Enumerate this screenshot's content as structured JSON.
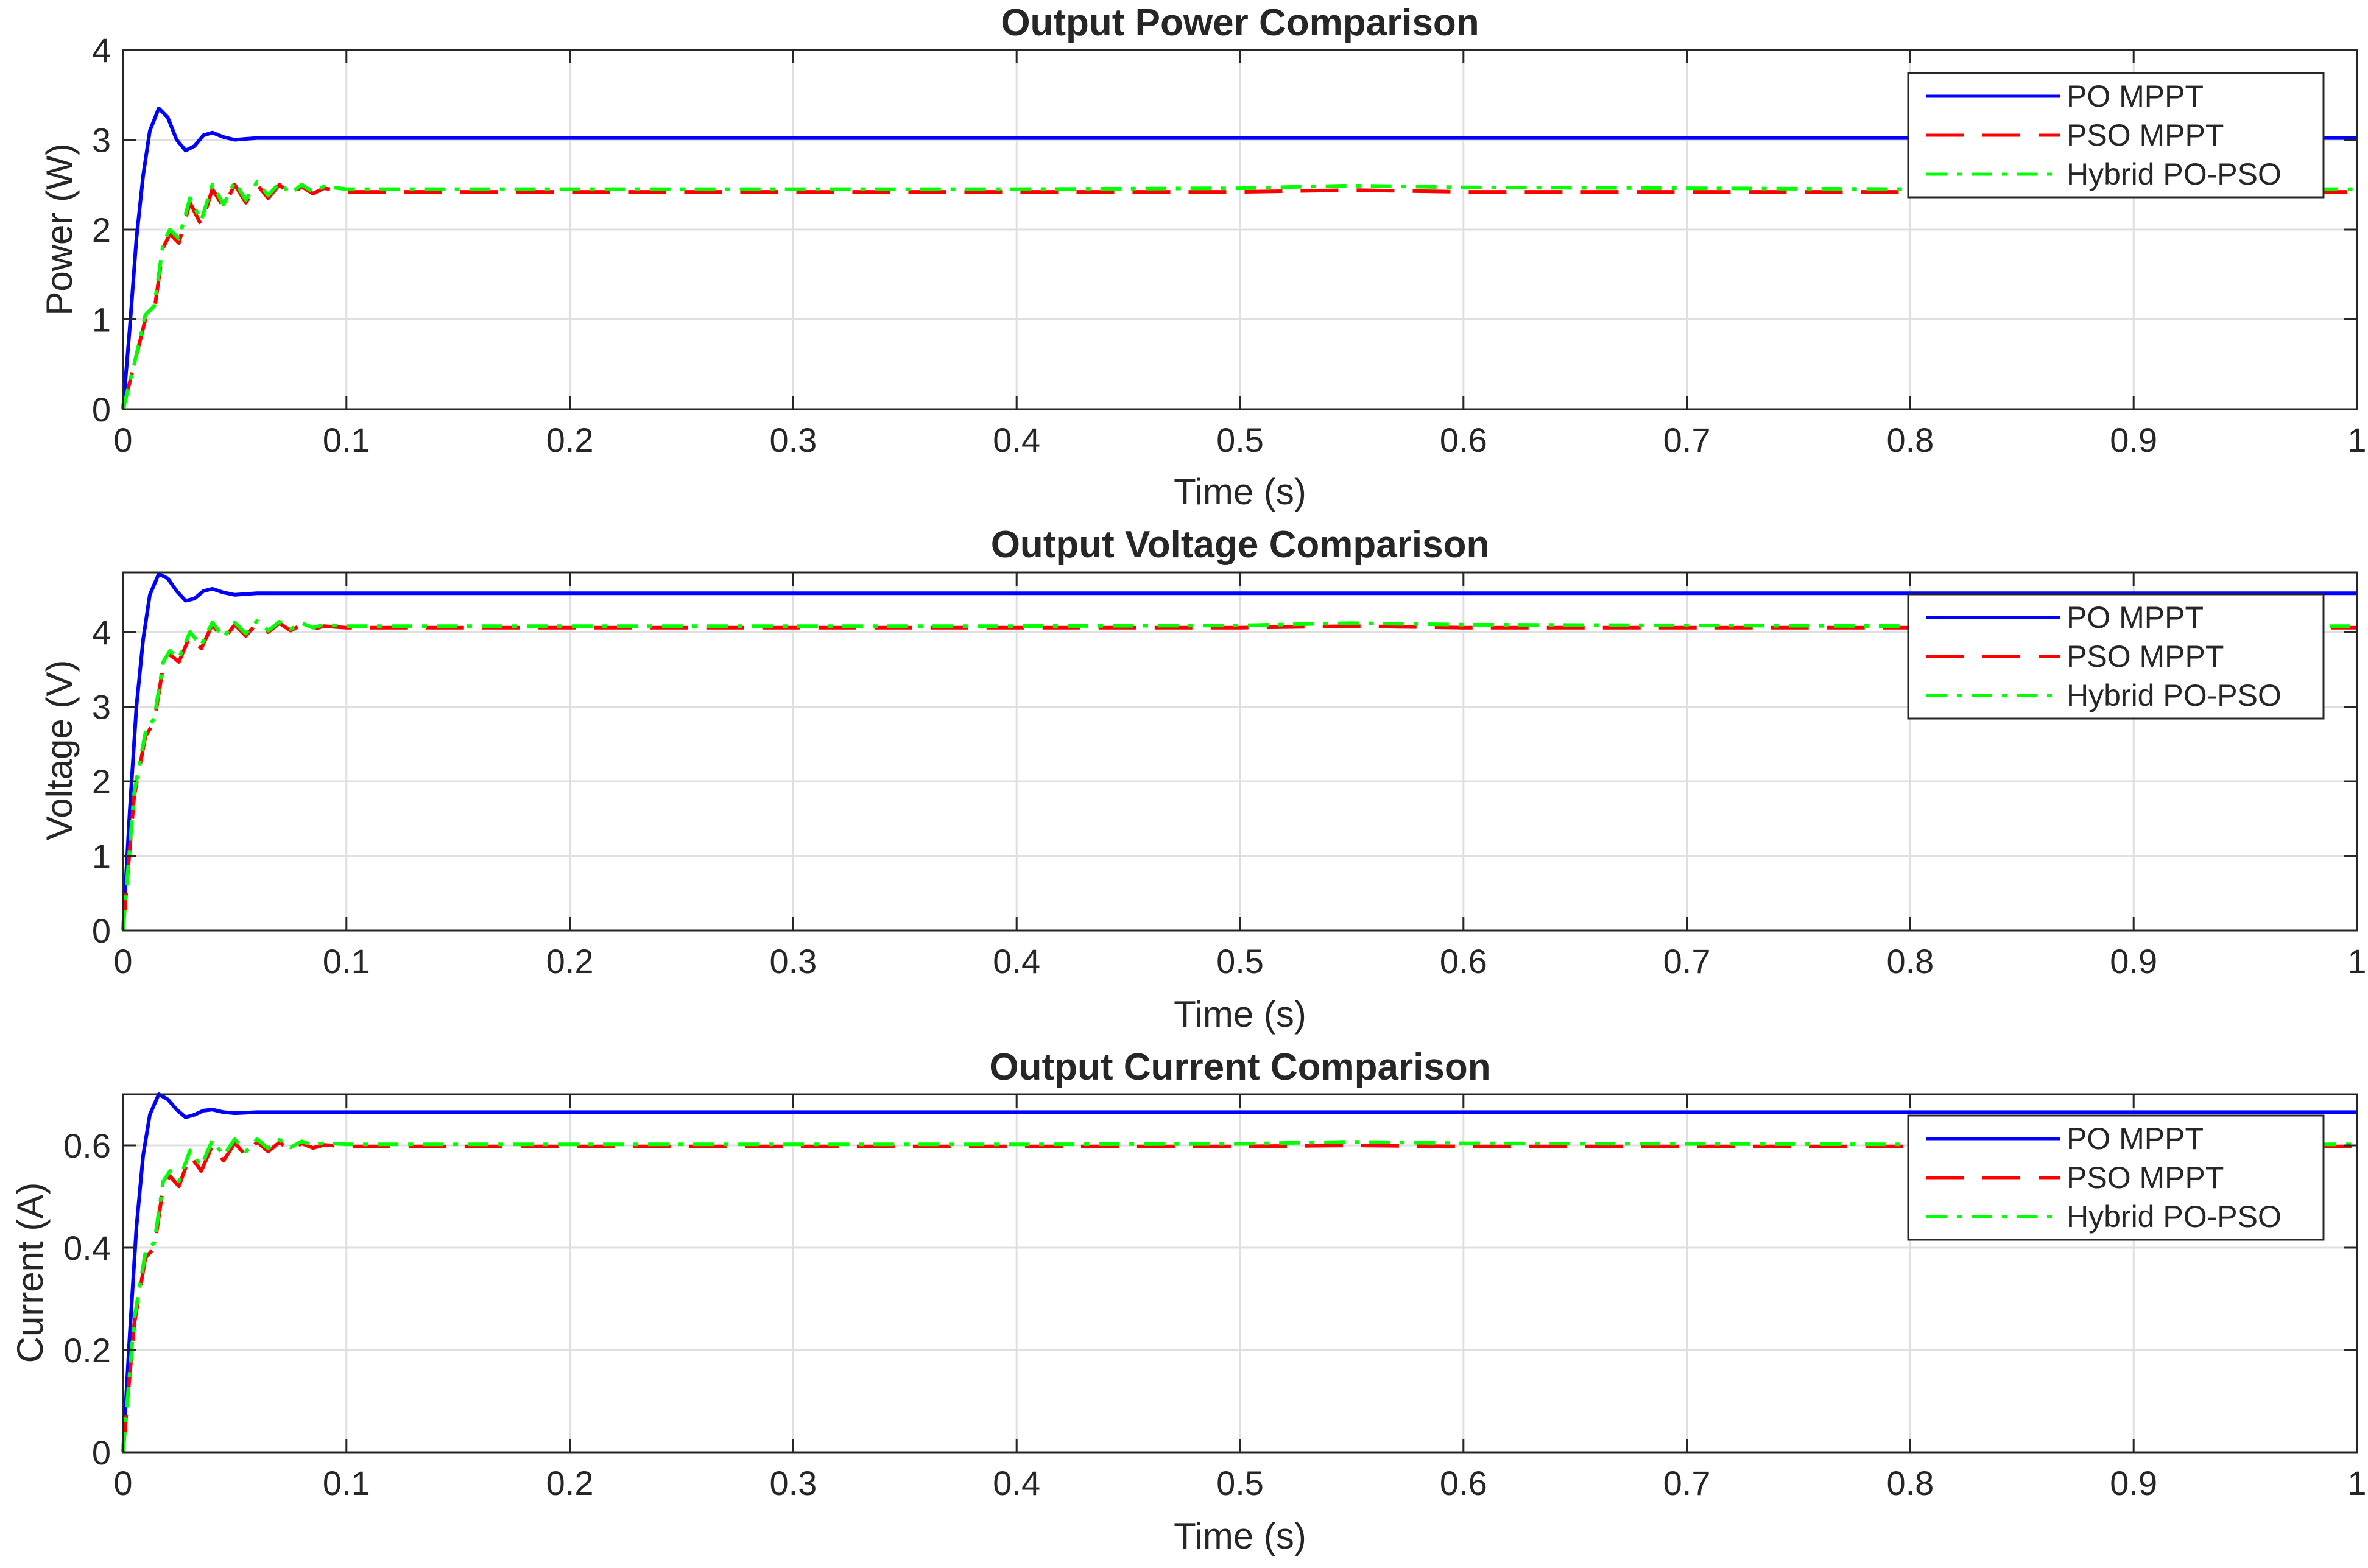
{
  "figure": {
    "background": "#ffffff"
  },
  "chart_data": [
    {
      "type": "line",
      "title": "Output Power Comparison",
      "xlabel": "Time (s)",
      "ylabel": "Power (W)",
      "xlim": [
        0,
        1
      ],
      "ylim": [
        0,
        4
      ],
      "xticks": [
        0,
        0.1,
        0.2,
        0.3,
        0.4,
        0.5,
        0.6,
        0.7,
        0.8,
        0.9,
        1
      ],
      "xtick_labels": [
        "0",
        "0.1",
        "0.2",
        "0.3",
        "0.4",
        "0.5",
        "0.6",
        "0.7",
        "0.8",
        "0.9",
        "1"
      ],
      "yticks": [
        0,
        1,
        2,
        3,
        4
      ],
      "ytick_labels": [
        "0",
        "1",
        "2",
        "3",
        "4"
      ],
      "grid": true,
      "legend_position": "top-right",
      "series": [
        {
          "name": "PO MPPT",
          "color": "#0000ff",
          "line_style": "solid",
          "x": [
            0,
            0.003,
            0.006,
            0.009,
            0.012,
            0.016,
            0.02,
            0.024,
            0.028,
            0.032,
            0.036,
            0.04,
            0.045,
            0.05,
            0.055,
            0.06,
            0.1,
            0.2,
            0.3,
            0.4,
            0.5,
            0.6,
            0.7,
            0.8,
            0.9,
            1.0
          ],
          "y": [
            0,
            0.9,
            1.9,
            2.6,
            3.1,
            3.35,
            3.25,
            3.0,
            2.88,
            2.93,
            3.05,
            3.08,
            3.03,
            3.0,
            3.01,
            3.02,
            3.02,
            3.02,
            3.02,
            3.02,
            3.02,
            3.02,
            3.02,
            3.02,
            3.02,
            3.02
          ]
        },
        {
          "name": "PSO MPPT",
          "color": "#ff0000",
          "line_style": "dashed",
          "x": [
            0,
            0.005,
            0.01,
            0.014,
            0.018,
            0.021,
            0.025,
            0.03,
            0.035,
            0.04,
            0.045,
            0.05,
            0.055,
            0.06,
            0.065,
            0.07,
            0.075,
            0.08,
            0.085,
            0.09,
            0.1,
            0.2,
            0.3,
            0.4,
            0.5,
            0.55,
            0.6,
            0.7,
            0.8,
            0.9,
            1.0
          ],
          "y": [
            0,
            0.5,
            1.0,
            1.1,
            1.8,
            1.95,
            1.85,
            2.3,
            2.05,
            2.45,
            2.25,
            2.5,
            2.3,
            2.5,
            2.35,
            2.5,
            2.38,
            2.48,
            2.4,
            2.46,
            2.42,
            2.42,
            2.42,
            2.42,
            2.42,
            2.44,
            2.42,
            2.42,
            2.42,
            2.42,
            2.42
          ]
        },
        {
          "name": "Hybrid PO-PSO",
          "color": "#00ff00",
          "line_style": "dashdot",
          "x": [
            0,
            0.005,
            0.01,
            0.014,
            0.018,
            0.021,
            0.025,
            0.03,
            0.035,
            0.04,
            0.045,
            0.05,
            0.055,
            0.06,
            0.065,
            0.07,
            0.075,
            0.08,
            0.085,
            0.09,
            0.1,
            0.2,
            0.3,
            0.4,
            0.5,
            0.55,
            0.6,
            0.7,
            0.8,
            0.9,
            1.0
          ],
          "y": [
            0,
            0.5,
            1.05,
            1.15,
            1.85,
            2.0,
            1.9,
            2.35,
            2.1,
            2.5,
            2.28,
            2.53,
            2.33,
            2.53,
            2.38,
            2.52,
            2.4,
            2.5,
            2.42,
            2.48,
            2.45,
            2.45,
            2.45,
            2.45,
            2.46,
            2.49,
            2.47,
            2.46,
            2.45,
            2.45,
            2.45
          ]
        }
      ]
    },
    {
      "type": "line",
      "title": "Output Voltage Comparison",
      "xlabel": "Time (s)",
      "ylabel": "Voltage (V)",
      "xlim": [
        0,
        1
      ],
      "ylim": [
        0,
        4.8
      ],
      "xticks": [
        0,
        0.1,
        0.2,
        0.3,
        0.4,
        0.5,
        0.6,
        0.7,
        0.8,
        0.9,
        1
      ],
      "xtick_labels": [
        "0",
        "0.1",
        "0.2",
        "0.3",
        "0.4",
        "0.5",
        "0.6",
        "0.7",
        "0.8",
        "0.9",
        "1"
      ],
      "yticks": [
        0,
        1,
        2,
        3,
        4
      ],
      "ytick_labels": [
        "0",
        "1",
        "2",
        "3",
        "4"
      ],
      "grid": true,
      "legend_position": "right",
      "series": [
        {
          "name": "PO MPPT",
          "color": "#0000ff",
          "line_style": "solid",
          "x": [
            0,
            0.003,
            0.006,
            0.009,
            0.012,
            0.016,
            0.02,
            0.024,
            0.028,
            0.032,
            0.036,
            0.04,
            0.045,
            0.05,
            0.055,
            0.06,
            0.1,
            0.2,
            0.3,
            0.4,
            0.5,
            0.6,
            0.7,
            0.8,
            0.9,
            1.0
          ],
          "y": [
            0,
            1.6,
            3.0,
            3.9,
            4.5,
            4.78,
            4.72,
            4.55,
            4.42,
            4.45,
            4.55,
            4.58,
            4.53,
            4.5,
            4.51,
            4.52,
            4.52,
            4.52,
            4.52,
            4.52,
            4.52,
            4.52,
            4.52,
            4.52,
            4.52,
            4.52
          ]
        },
        {
          "name": "PSO MPPT",
          "color": "#ff0000",
          "line_style": "dashed",
          "x": [
            0,
            0.005,
            0.01,
            0.014,
            0.018,
            0.021,
            0.025,
            0.03,
            0.035,
            0.04,
            0.045,
            0.05,
            0.055,
            0.06,
            0.065,
            0.07,
            0.075,
            0.08,
            0.085,
            0.09,
            0.1,
            0.2,
            0.3,
            0.4,
            0.5,
            0.55,
            0.6,
            0.7,
            0.8,
            0.9,
            1.0
          ],
          "y": [
            0,
            1.8,
            2.6,
            2.8,
            3.55,
            3.7,
            3.6,
            3.95,
            3.78,
            4.1,
            3.9,
            4.1,
            3.95,
            4.12,
            4.0,
            4.12,
            4.02,
            4.1,
            4.04,
            4.08,
            4.06,
            4.06,
            4.06,
            4.06,
            4.06,
            4.08,
            4.06,
            4.06,
            4.06,
            4.06,
            4.06
          ]
        },
        {
          "name": "Hybrid PO-PSO",
          "color": "#00ff00",
          "line_style": "dashdot",
          "x": [
            0,
            0.005,
            0.01,
            0.014,
            0.018,
            0.021,
            0.025,
            0.03,
            0.035,
            0.04,
            0.045,
            0.05,
            0.055,
            0.06,
            0.065,
            0.07,
            0.075,
            0.08,
            0.085,
            0.09,
            0.1,
            0.2,
            0.3,
            0.4,
            0.5,
            0.55,
            0.6,
            0.7,
            0.8,
            0.9,
            1.0
          ],
          "y": [
            0,
            1.85,
            2.65,
            2.85,
            3.6,
            3.75,
            3.65,
            4.0,
            3.82,
            4.13,
            3.93,
            4.13,
            3.98,
            4.15,
            4.02,
            4.14,
            4.04,
            4.12,
            4.06,
            4.1,
            4.08,
            4.08,
            4.08,
            4.08,
            4.09,
            4.12,
            4.1,
            4.09,
            4.08,
            4.08,
            4.08
          ]
        }
      ]
    },
    {
      "type": "line",
      "title": "Output Current Comparison",
      "xlabel": "Time (s)",
      "ylabel": "Current (A)",
      "xlim": [
        0,
        1
      ],
      "ylim": [
        0,
        0.7
      ],
      "xticks": [
        0,
        0.1,
        0.2,
        0.3,
        0.4,
        0.5,
        0.6,
        0.7,
        0.8,
        0.9,
        1
      ],
      "xtick_labels": [
        "0",
        "0.1",
        "0.2",
        "0.3",
        "0.4",
        "0.5",
        "0.6",
        "0.7",
        "0.8",
        "0.9",
        "1"
      ],
      "yticks": [
        0,
        0.2,
        0.4,
        0.6
      ],
      "ytick_labels": [
        "0",
        "0.2",
        "0.4",
        "0.6"
      ],
      "grid": true,
      "legend_position": "right",
      "series": [
        {
          "name": "PO MPPT",
          "color": "#0000ff",
          "line_style": "solid",
          "x": [
            0,
            0.003,
            0.006,
            0.009,
            0.012,
            0.016,
            0.02,
            0.024,
            0.028,
            0.032,
            0.036,
            0.04,
            0.045,
            0.05,
            0.055,
            0.06,
            0.1,
            0.2,
            0.3,
            0.4,
            0.5,
            0.6,
            0.7,
            0.8,
            0.9,
            1.0
          ],
          "y": [
            0,
            0.23,
            0.44,
            0.58,
            0.66,
            0.7,
            0.69,
            0.67,
            0.655,
            0.66,
            0.668,
            0.67,
            0.665,
            0.663,
            0.664,
            0.665,
            0.665,
            0.665,
            0.665,
            0.665,
            0.665,
            0.665,
            0.665,
            0.665,
            0.665,
            0.665
          ]
        },
        {
          "name": "PSO MPPT",
          "color": "#ff0000",
          "line_style": "dashed",
          "x": [
            0,
            0.005,
            0.01,
            0.014,
            0.018,
            0.021,
            0.025,
            0.03,
            0.035,
            0.04,
            0.045,
            0.05,
            0.055,
            0.06,
            0.065,
            0.07,
            0.075,
            0.08,
            0.085,
            0.09,
            0.1,
            0.2,
            0.3,
            0.4,
            0.5,
            0.55,
            0.6,
            0.7,
            0.8,
            0.9,
            1.0
          ],
          "y": [
            0,
            0.25,
            0.38,
            0.4,
            0.52,
            0.54,
            0.52,
            0.58,
            0.55,
            0.6,
            0.57,
            0.605,
            0.58,
            0.607,
            0.588,
            0.606,
            0.59,
            0.604,
            0.595,
            0.601,
            0.598,
            0.598,
            0.598,
            0.598,
            0.598,
            0.6,
            0.598,
            0.598,
            0.598,
            0.598,
            0.598
          ]
        },
        {
          "name": "Hybrid PO-PSO",
          "color": "#00ff00",
          "line_style": "dashdot",
          "x": [
            0,
            0.005,
            0.01,
            0.014,
            0.018,
            0.021,
            0.025,
            0.03,
            0.035,
            0.04,
            0.045,
            0.05,
            0.055,
            0.06,
            0.065,
            0.07,
            0.075,
            0.08,
            0.085,
            0.09,
            0.1,
            0.2,
            0.3,
            0.4,
            0.5,
            0.55,
            0.6,
            0.7,
            0.8,
            0.9,
            1.0
          ],
          "y": [
            0,
            0.26,
            0.39,
            0.41,
            0.53,
            0.55,
            0.53,
            0.59,
            0.56,
            0.61,
            0.58,
            0.612,
            0.588,
            0.612,
            0.594,
            0.611,
            0.596,
            0.608,
            0.6,
            0.605,
            0.602,
            0.602,
            0.602,
            0.602,
            0.603,
            0.607,
            0.604,
            0.603,
            0.602,
            0.602,
            0.602
          ]
        }
      ]
    }
  ]
}
